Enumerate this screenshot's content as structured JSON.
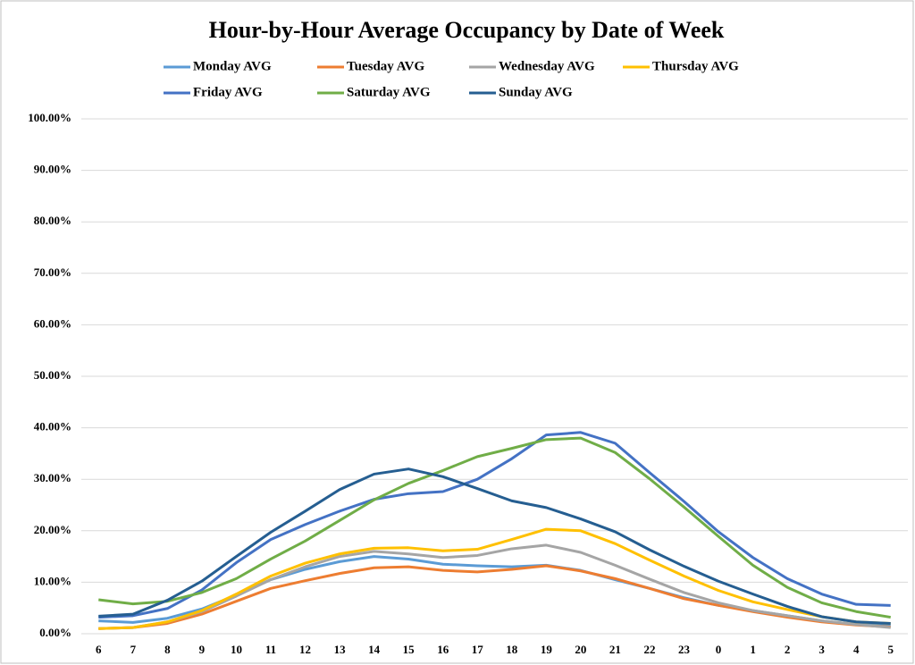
{
  "chart_data": {
    "type": "line",
    "title": "Hour-by-Hour Average Occupancy by Date of Week",
    "categories": [
      "6",
      "7",
      "8",
      "9",
      "10",
      "11",
      "12",
      "13",
      "14",
      "15",
      "16",
      "17",
      "18",
      "19",
      "20",
      "21",
      "22",
      "23",
      "0",
      "1",
      "2",
      "3",
      "4",
      "5"
    ],
    "series": [
      {
        "name": "Monday AVG",
        "color": "#5B9BD5",
        "values": [
          2.5,
          2.2,
          3,
          4.8,
          7.5,
          10.5,
          12.5,
          14,
          15,
          14.5,
          13.5,
          13.2,
          13,
          13.3,
          12.3,
          10.5,
          8.8,
          7,
          5.5,
          4.5,
          3.5,
          2.5,
          1.8,
          1.5
        ]
      },
      {
        "name": "Tuesday AVG",
        "color": "#ED7D31",
        "values": [
          1,
          1.2,
          2,
          3.8,
          6.3,
          8.8,
          10.3,
          11.7,
          12.8,
          13,
          12.3,
          12,
          12.5,
          13.2,
          12.2,
          10.7,
          8.8,
          6.8,
          5.5,
          4.3,
          3.2,
          2.3,
          1.7,
          1.3
        ]
      },
      {
        "name": "Wednesday AVG",
        "color": "#A5A5A5",
        "values": [
          1,
          1.2,
          2.3,
          4.3,
          7.3,
          10.5,
          13,
          15,
          16,
          15.5,
          14.8,
          15.2,
          16.5,
          17.2,
          15.8,
          13.3,
          10.6,
          8,
          6,
          4.5,
          3.5,
          2.5,
          1.8,
          1.2
        ]
      },
      {
        "name": "Thursday AVG",
        "color": "#FFC000",
        "values": [
          1,
          1.2,
          2.3,
          4.5,
          7.7,
          11.2,
          13.7,
          15.5,
          16.6,
          16.7,
          16.1,
          16.4,
          18.3,
          20.3,
          20,
          17.5,
          14.3,
          11.2,
          8.4,
          6.2,
          4.7,
          3.3,
          2.3,
          2
        ]
      },
      {
        "name": "Friday AVG",
        "color": "#4472C4",
        "values": [
          3.2,
          3.5,
          4.9,
          8.5,
          13.8,
          18.3,
          21.2,
          23.8,
          26.1,
          27.2,
          27.6,
          30,
          34,
          38.6,
          39.1,
          37,
          31.3,
          25.7,
          19.8,
          14.8,
          10.7,
          7.7,
          5.7,
          5.5
        ]
      },
      {
        "name": "Saturday AVG",
        "color": "#70AD47",
        "values": [
          6.6,
          5.8,
          6.3,
          8,
          10.7,
          14.5,
          18,
          22,
          26,
          29.2,
          31.7,
          34.4,
          36,
          37.7,
          38,
          35.2,
          30.1,
          24.6,
          18.9,
          13.3,
          9,
          6,
          4.3,
          3.2
        ]
      },
      {
        "name": "Sunday AVG",
        "color": "#255E91",
        "values": [
          3.4,
          3.8,
          6.5,
          10.2,
          15,
          19.7,
          23.8,
          28,
          31,
          32,
          30.5,
          28.2,
          25.8,
          24.5,
          22.3,
          19.8,
          16.3,
          13.1,
          10.2,
          7.7,
          5.3,
          3.3,
          2.3,
          2
        ]
      }
    ],
    "ylim": [
      0,
      100
    ],
    "yticks": [
      {
        "value": 0,
        "label": "0.00%"
      },
      {
        "value": 10,
        "label": "10.00%"
      },
      {
        "value": 20,
        "label": "20.00%"
      },
      {
        "value": 30,
        "label": "30.00%"
      },
      {
        "value": 40,
        "label": "40.00%"
      },
      {
        "value": 50,
        "label": "50.00%"
      },
      {
        "value": 60,
        "label": "60.00%"
      },
      {
        "value": 70,
        "label": "70.00%"
      },
      {
        "value": 80,
        "label": "80.00%"
      },
      {
        "value": 90,
        "label": "90.00%"
      },
      {
        "value": 100,
        "label": "100.00%"
      }
    ],
    "grid": true,
    "legend": "top"
  }
}
